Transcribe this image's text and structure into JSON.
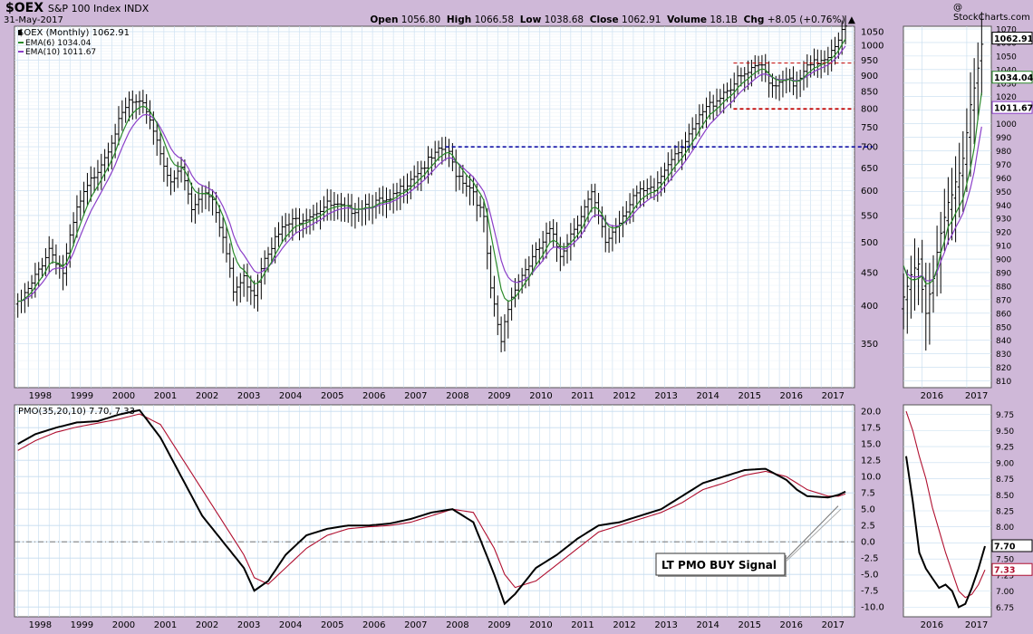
{
  "header": {
    "symbol": "$OEX",
    "symbol_desc": "S&P 100 Index  INDX",
    "date": "31-May-2017",
    "brand": "@ StockCharts.com",
    "ohlc": {
      "open_label": "Open",
      "open": "1056.80",
      "high_label": "High",
      "high": "1066.58",
      "low_label": "Low",
      "low": "1038.68",
      "close_label": "Close",
      "close": "1062.91",
      "volume_label": "Volume",
      "volume": "18.1B",
      "chg_label": "Chg",
      "chg": "+8.05 (+0.76%)"
    }
  },
  "legend": {
    "price": "$OEX (Monthly) 1062.91",
    "ema6": "EMA(6) 1034.04",
    "ema10": "EMA(10) 1011.67",
    "pmo": "PMO(35,20,10) 7.70, 7.33"
  },
  "annotation": "LT PMO BUY Signal",
  "colors": {
    "background": "#cfb8d8",
    "panel": "#ffffff",
    "grid": "#c5dcef",
    "price": "#000000",
    "ema6": "#2a8a2a",
    "ema10": "#8b3fc8",
    "pmo": "#000000",
    "pmo_signal": "#b01030",
    "support_blue": "#0000a0",
    "level_red": "#c00000"
  },
  "badges": {
    "right_close": "1062.91",
    "right_ema6": "1034.04",
    "right_ema10": "1011.67",
    "right_pmo": "7.70",
    "right_signal": "7.33"
  },
  "chart_data": {
    "type": "ohlc",
    "main": {
      "x_ticks": [
        "1998",
        "1999",
        "2000",
        "2001",
        "2002",
        "2003",
        "2004",
        "2005",
        "2006",
        "2007",
        "2008",
        "2009",
        "2010",
        "2011",
        "2012",
        "2013",
        "2014",
        "2015",
        "2016",
        "2017"
      ],
      "y_ticks": [
        "1050",
        "1000",
        "950",
        "900",
        "850",
        "800",
        "750",
        "700",
        "650",
        "600",
        "550",
        "500",
        "450",
        "400",
        "350"
      ],
      "y_scale": "log",
      "ylim": [
        300,
        1070
      ],
      "price_keypoints": [
        [
          "1997-07",
          400
        ],
        [
          "1997-11",
          430
        ],
        [
          "1998-04",
          490
        ],
        [
          "1998-08",
          450
        ],
        [
          "1998-12",
          560
        ],
        [
          "1999-04",
          620
        ],
        [
          "1999-08",
          680
        ],
        [
          "1999-12",
          760
        ],
        [
          "2000-03",
          820
        ],
        [
          "2000-08",
          800
        ],
        [
          "2000-12",
          690
        ],
        [
          "2001-03",
          610
        ],
        [
          "2001-06",
          650
        ],
        [
          "2001-09",
          560
        ],
        [
          "2001-12",
          600
        ],
        [
          "2002-03",
          590
        ],
        [
          "2002-07",
          480
        ],
        [
          "2002-09",
          420
        ],
        [
          "2002-12",
          440
        ],
        [
          "2003-03",
          420
        ],
        [
          "2003-06",
          480
        ],
        [
          "2003-12",
          530
        ],
        [
          "2004-06",
          550
        ],
        [
          "2004-12",
          570
        ],
        [
          "2005-06",
          560
        ],
        [
          "2005-12",
          575
        ],
        [
          "2006-06",
          575
        ],
        [
          "2006-12",
          630
        ],
        [
          "2007-06",
          670
        ],
        [
          "2007-10",
          700
        ],
        [
          "2008-01",
          640
        ],
        [
          "2008-06",
          600
        ],
        [
          "2008-09",
          540
        ],
        [
          "2008-11",
          420
        ],
        [
          "2009-02",
          350
        ],
        [
          "2009-03",
          380
        ],
        [
          "2009-06",
          430
        ],
        [
          "2009-12",
          480
        ],
        [
          "2010-04",
          520
        ],
        [
          "2010-07",
          480
        ],
        [
          "2010-12",
          540
        ],
        [
          "2011-04",
          590
        ],
        [
          "2011-08",
          500
        ],
        [
          "2011-12",
          540
        ],
        [
          "2012-04",
          590
        ],
        [
          "2012-10",
          600
        ],
        [
          "2013-03",
          680
        ],
        [
          "2013-08",
          720
        ],
        [
          "2013-12",
          790
        ],
        [
          "2014-06",
          850
        ],
        [
          "2014-12",
          900
        ],
        [
          "2015-05",
          930
        ],
        [
          "2015-08",
          870
        ],
        [
          "2015-12",
          900
        ],
        [
          "2016-02",
          860
        ],
        [
          "2016-06",
          920
        ],
        [
          "2016-12",
          970
        ],
        [
          "2017-03",
          1030
        ],
        [
          "2017-05",
          1063
        ]
      ],
      "ema6_last": 1034.04,
      "ema10_last": 1011.67,
      "blue_support_level": 700,
      "red_levels": [
        940,
        800
      ]
    },
    "pmo": {
      "y_ticks": [
        "20.0",
        "17.5",
        "15.0",
        "12.5",
        "10.0",
        "7.5",
        "5.0",
        "2.5",
        "0.0",
        "-2.5",
        "-5.0",
        "-7.5",
        "-10.0"
      ],
      "ylim": [
        -11.5,
        21
      ],
      "pmo_keypoints": [
        [
          "1997-07",
          15
        ],
        [
          "1997-12",
          16.5
        ],
        [
          "1998-06",
          17.5
        ],
        [
          "1998-12",
          18.3
        ],
        [
          "1999-06",
          18.5
        ],
        [
          "1999-12",
          19.5
        ],
        [
          "2000-06",
          20.2
        ],
        [
          "2000-12",
          16
        ],
        [
          "2001-06",
          10
        ],
        [
          "2001-12",
          4
        ],
        [
          "2002-06",
          0
        ],
        [
          "2002-12",
          -4
        ],
        [
          "2003-03",
          -7.5
        ],
        [
          "2003-07",
          -6
        ],
        [
          "2003-12",
          -2
        ],
        [
          "2004-06",
          1
        ],
        [
          "2004-12",
          2
        ],
        [
          "2005-06",
          2.5
        ],
        [
          "2005-12",
          2.5
        ],
        [
          "2006-06",
          2.8
        ],
        [
          "2006-12",
          3.5
        ],
        [
          "2007-06",
          4.5
        ],
        [
          "2007-12",
          5
        ],
        [
          "2008-06",
          3
        ],
        [
          "2008-12",
          -5
        ],
        [
          "2009-03",
          -9.5
        ],
        [
          "2009-06",
          -8
        ],
        [
          "2009-12",
          -4
        ],
        [
          "2010-06",
          -2
        ],
        [
          "2010-12",
          0.5
        ],
        [
          "2011-06",
          2.5
        ],
        [
          "2011-12",
          3
        ],
        [
          "2012-06",
          4
        ],
        [
          "2012-12",
          5
        ],
        [
          "2013-06",
          7
        ],
        [
          "2013-12",
          9
        ],
        [
          "2014-06",
          10
        ],
        [
          "2014-12",
          11
        ],
        [
          "2015-06",
          11.2
        ],
        [
          "2015-12",
          9.5
        ],
        [
          "2016-03",
          8
        ],
        [
          "2016-06",
          7
        ],
        [
          "2016-12",
          6.8
        ],
        [
          "2017-03",
          7.2
        ],
        [
          "2017-05",
          7.7
        ]
      ],
      "signal_keypoints": [
        [
          "1997-07",
          14
        ],
        [
          "1997-12",
          15.5
        ],
        [
          "1998-06",
          16.8
        ],
        [
          "1998-12",
          17.6
        ],
        [
          "1999-06",
          18.2
        ],
        [
          "1999-12",
          18.8
        ],
        [
          "2000-06",
          19.6
        ],
        [
          "2000-12",
          18
        ],
        [
          "2001-06",
          13
        ],
        [
          "2001-12",
          8
        ],
        [
          "2002-06",
          3
        ],
        [
          "2002-12",
          -2
        ],
        [
          "2003-03",
          -5.5
        ],
        [
          "2003-07",
          -6.5
        ],
        [
          "2003-12",
          -4
        ],
        [
          "2004-06",
          -1
        ],
        [
          "2004-12",
          1
        ],
        [
          "2005-06",
          2
        ],
        [
          "2005-12",
          2.3
        ],
        [
          "2006-06",
          2.5
        ],
        [
          "2006-12",
          3
        ],
        [
          "2007-06",
          4
        ],
        [
          "2007-12",
          5
        ],
        [
          "2008-06",
          4.5
        ],
        [
          "2008-12",
          -1
        ],
        [
          "2009-03",
          -5
        ],
        [
          "2009-06",
          -7
        ],
        [
          "2009-12",
          -6
        ],
        [
          "2010-06",
          -3.5
        ],
        [
          "2010-12",
          -1
        ],
        [
          "2011-06",
          1.5
        ],
        [
          "2011-12",
          2.5
        ],
        [
          "2012-06",
          3.5
        ],
        [
          "2012-12",
          4.5
        ],
        [
          "2013-06",
          6
        ],
        [
          "2013-12",
          8
        ],
        [
          "2014-06",
          9
        ],
        [
          "2014-12",
          10.2
        ],
        [
          "2015-06",
          10.8
        ],
        [
          "2015-12",
          10
        ],
        [
          "2016-03",
          9
        ],
        [
          "2016-06",
          8
        ],
        [
          "2016-12",
          7
        ],
        [
          "2017-03",
          7
        ],
        [
          "2017-05",
          7.33
        ]
      ]
    },
    "zoom_price": {
      "x_ticks": [
        "2016",
        "2017"
      ],
      "y_ticks": [
        "1070",
        "1060",
        "1050",
        "1040",
        "1030",
        "1020",
        "1010",
        "1000",
        "990",
        "980",
        "970",
        "960",
        "950",
        "940",
        "930",
        "920",
        "910",
        "900",
        "890",
        "880",
        "870",
        "860",
        "850",
        "840",
        "830",
        "820",
        "810"
      ],
      "ylim": [
        805,
        1072
      ]
    },
    "zoom_pmo": {
      "x_ticks": [
        "2016",
        "2017"
      ],
      "y_ticks": [
        "9.75",
        "9.50",
        "9.25",
        "9.00",
        "8.75",
        "8.50",
        "8.25",
        "8.00",
        "7.75",
        "7.50",
        "7.25",
        "7.00",
        "6.75"
      ],
      "ylim": [
        6.6,
        9.9
      ]
    }
  }
}
